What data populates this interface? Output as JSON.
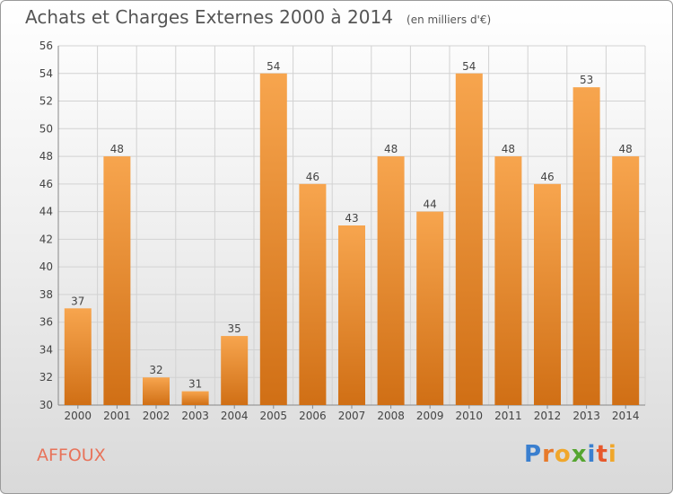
{
  "title": "Achats et Charges Externes 2000 à 2014",
  "unit_note": "(en milliers d'€)",
  "commune": "AFFOUX",
  "brand": {
    "letters": [
      "P",
      "r",
      "o",
      "x",
      "i",
      "t",
      "i"
    ],
    "colors": [
      "#3a7fcf",
      "#e77a2b",
      "#f0a72b",
      "#55a530",
      "#3a7fcf",
      "#e7582b",
      "#f0a72b"
    ]
  },
  "colors": {
    "bar_top": "#f7a54e",
    "bar_bottom": "#d06f15",
    "grid": "#d2d2d2",
    "axis_text": "#444444",
    "title_text": "#555555"
  },
  "chart_data": {
    "type": "bar",
    "title": "Achats et Charges Externes 2000 à 2014",
    "categories": [
      "2000",
      "2001",
      "2002",
      "2003",
      "2004",
      "2005",
      "2006",
      "2007",
      "2008",
      "2009",
      "2010",
      "2011",
      "2012",
      "2013",
      "2014"
    ],
    "values": [
      37,
      48,
      32,
      31,
      35,
      54,
      46,
      43,
      48,
      44,
      54,
      48,
      46,
      53,
      48
    ],
    "ylim": [
      30,
      56
    ],
    "yticks": [
      30,
      32,
      34,
      36,
      38,
      40,
      42,
      44,
      46,
      48,
      50,
      52,
      54,
      56
    ],
    "grid": true,
    "data_labels": true
  }
}
